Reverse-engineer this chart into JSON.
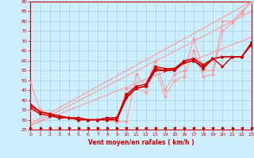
{
  "xlabel": "Vent moyen/en rafales ( km/h )",
  "xlim": [
    0,
    23
  ],
  "ylim": [
    25,
    90
  ],
  "yticks": [
    25,
    30,
    35,
    40,
    45,
    50,
    55,
    60,
    65,
    70,
    75,
    80,
    85,
    90
  ],
  "xticks": [
    0,
    1,
    2,
    3,
    4,
    5,
    6,
    7,
    8,
    9,
    10,
    11,
    12,
    13,
    14,
    15,
    16,
    17,
    18,
    19,
    20,
    21,
    22,
    23
  ],
  "bg_color": "#cceeff",
  "grid_color": "#99cccc",
  "dc": "#cc0000",
  "lc": "#ff9999",
  "diag1": {
    "x": [
      0,
      23
    ],
    "y": [
      28,
      90
    ]
  },
  "diag2": {
    "x": [
      0,
      23
    ],
    "y": [
      27,
      85
    ]
  },
  "diag3": {
    "x": [
      0,
      23
    ],
    "y": [
      27,
      72
    ]
  },
  "light1_x": [
    0,
    1,
    2,
    3,
    4,
    5,
    6,
    7,
    8,
    9,
    10,
    11,
    12,
    13,
    14,
    15,
    16,
    17,
    18,
    19,
    20,
    21,
    22,
    23
  ],
  "light1_y": [
    49,
    35,
    33,
    31,
    31,
    30,
    30,
    30,
    30,
    29,
    29,
    53,
    47,
    60,
    45,
    53,
    55,
    71,
    55,
    55,
    80,
    80,
    85,
    90
  ],
  "light2_x": [
    0,
    1,
    2,
    3,
    4,
    5,
    6,
    7,
    8,
    9,
    10,
    11,
    12,
    13,
    14,
    15,
    16,
    17,
    18,
    19,
    20,
    21,
    22,
    23
  ],
  "light2_y": [
    35,
    33,
    33,
    32,
    31,
    31,
    30,
    30,
    30,
    29,
    46,
    46,
    44,
    56,
    42,
    50,
    52,
    65,
    52,
    53,
    75,
    79,
    84,
    90
  ],
  "dark1_x": [
    0,
    1,
    2,
    3,
    4,
    5,
    6,
    7,
    8,
    9,
    10,
    11,
    12,
    13,
    14,
    15,
    16,
    17,
    18,
    19,
    20,
    21,
    22,
    23
  ],
  "dark1_y": [
    37,
    34,
    33,
    31,
    31,
    30,
    30,
    30,
    30,
    30,
    41,
    46,
    47,
    55,
    55,
    55,
    59,
    60,
    57,
    61,
    62,
    62,
    62,
    68
  ],
  "dark2_x": [
    0,
    1,
    2,
    3,
    4,
    5,
    6,
    7,
    8,
    9,
    10,
    11,
    12,
    13,
    14,
    15,
    16,
    17,
    18,
    19,
    20,
    21,
    22,
    23
  ],
  "dark2_y": [
    38,
    34,
    33,
    32,
    31,
    30,
    30,
    30,
    30,
    31,
    43,
    47,
    48,
    57,
    56,
    56,
    60,
    61,
    58,
    61,
    62,
    62,
    62,
    69
  ],
  "dark3_x": [
    0,
    1,
    2,
    3,
    4,
    5,
    6,
    7,
    8,
    9,
    10,
    11,
    12,
    13,
    14,
    15,
    16,
    17,
    18,
    19,
    20,
    21,
    22,
    23
  ],
  "dark3_y": [
    36,
    33,
    32,
    31,
    31,
    31,
    30,
    30,
    31,
    31,
    42,
    46,
    47,
    56,
    55,
    56,
    59,
    60,
    56,
    61,
    57,
    62,
    62,
    69
  ],
  "arrows_x": [
    0,
    1,
    2,
    3,
    4,
    5,
    6,
    7,
    8,
    9,
    10,
    11,
    12,
    13,
    14,
    15,
    16,
    17,
    18,
    19,
    20,
    21,
    22,
    23
  ],
  "arrows_angles": [
    0,
    0,
    0,
    0,
    0,
    0,
    0,
    0,
    0,
    0,
    45,
    45,
    45,
    45,
    45,
    45,
    0,
    45,
    0,
    45,
    0,
    0,
    45,
    0
  ]
}
